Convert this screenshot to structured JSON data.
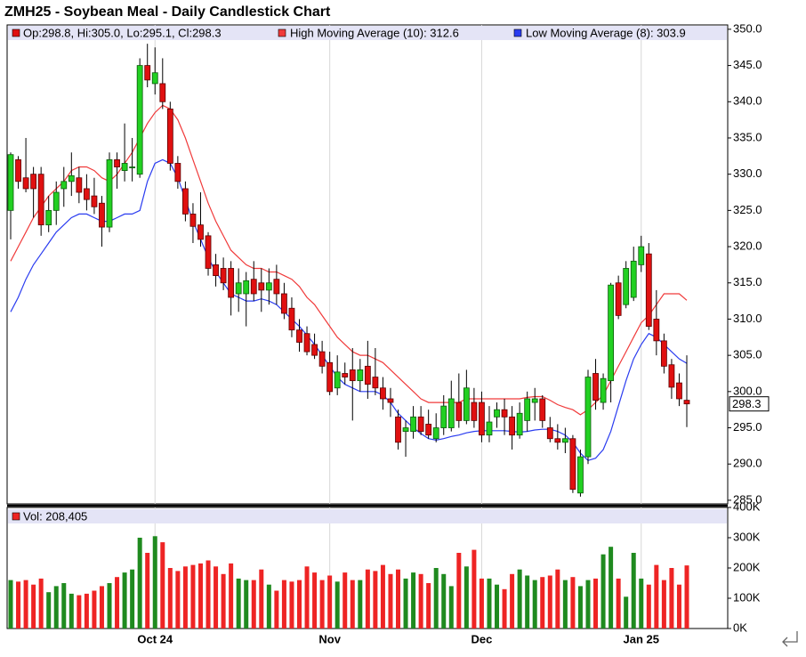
{
  "chart_data": [
    {
      "type": "candlestick",
      "title": "ZMH25 - Soybean Meal - Daily Candlestick Chart",
      "ohlc_label": "Op:298.8, Hi:305.0, Lo:295.1, Cl:298.3",
      "up_color": "#22d022",
      "down_color": "#e01010",
      "categories": [
        null,
        null,
        null,
        null,
        null,
        null,
        null,
        null,
        null,
        null,
        null,
        null,
        null,
        null,
        null,
        null,
        null,
        null,
        null,
        "Oct 24",
        null,
        null,
        null,
        null,
        null,
        null,
        null,
        null,
        null,
        null,
        null,
        null,
        null,
        null,
        null,
        null,
        null,
        null,
        null,
        null,
        null,
        null,
        "Nov",
        null,
        null,
        null,
        null,
        null,
        null,
        null,
        null,
        null,
        null,
        null,
        null,
        null,
        null,
        null,
        null,
        null,
        null,
        null,
        "Dec",
        null,
        null,
        null,
        null,
        null,
        null,
        null,
        null,
        null,
        null,
        null,
        null,
        null,
        null,
        null,
        null,
        null,
        null,
        null,
        null,
        "Jan 25",
        null,
        null,
        null,
        null,
        null,
        null
      ],
      "open": [
        325,
        332,
        329.5,
        330,
        330,
        323,
        325,
        328,
        329,
        329.5,
        328,
        327,
        326,
        322.7,
        332,
        330.5,
        331,
        330,
        345,
        342.5,
        342.5,
        339,
        331.5,
        328,
        324.5,
        323,
        321.5,
        317.5,
        317,
        317,
        313.5,
        313.5,
        315.5,
        315,
        314,
        315.5,
        313.5,
        311.5,
        308.5,
        308,
        306.5,
        305.5,
        304,
        300.5,
        302.5,
        303,
        301.5,
        303.5,
        302,
        300.5,
        299,
        296.5,
        294.5,
        294.5,
        296.5,
        295.5,
        293.5,
        295,
        295,
        298.5,
        296,
        298.5,
        298.5,
        294,
        296.5,
        297.5,
        296.5,
        294,
        296,
        298.5,
        299,
        295,
        293.5,
        293,
        293.5,
        286,
        291,
        302.5,
        298.5,
        301.5,
        315,
        312,
        313,
        317.5,
        319,
        310,
        307,
        303.7,
        301.2,
        298.8
      ],
      "high": [
        333,
        332.5,
        335,
        331,
        331,
        327,
        329,
        331,
        333,
        331,
        330,
        329.5,
        327,
        333,
        333,
        337,
        335,
        346,
        348,
        347.5,
        346,
        340,
        332.5,
        329,
        326,
        327.5,
        322,
        319,
        318.5,
        318,
        317,
        316.5,
        318,
        317,
        317,
        317.5,
        315,
        313,
        310,
        309,
        308,
        307,
        305.5,
        305,
        304,
        306,
        304.5,
        307,
        306,
        302,
        300.5,
        297.5,
        296,
        298,
        298,
        297.5,
        297,
        299.5,
        301.5,
        302.5,
        303,
        300.5,
        300,
        298,
        298.5,
        299,
        298,
        298.5,
        300,
        300.5,
        299.5,
        296.5,
        295.5,
        295,
        294,
        292,
        303,
        304.5,
        302.5,
        315,
        316,
        318,
        320,
        321.5,
        320.5,
        314,
        308,
        304.5,
        302.5,
        305
      ],
      "low": [
        321,
        328,
        327.5,
        324,
        321.5,
        322,
        323,
        325.5,
        327,
        326,
        325,
        324.5,
        320,
        322,
        328,
        329,
        329,
        329.5,
        342,
        341,
        339,
        330.5,
        328,
        323.5,
        320.5,
        320,
        316,
        314.5,
        314,
        310.5,
        311,
        309,
        312.5,
        311,
        312,
        312,
        310,
        307.5,
        305.5,
        305,
        304.5,
        302.5,
        299.5,
        299.5,
        301,
        296,
        300,
        299,
        299.5,
        297.5,
        296.5,
        292,
        291,
        293.5,
        294,
        293.5,
        293,
        294,
        294.5,
        295,
        295.5,
        295,
        293,
        293,
        295,
        294,
        292,
        293.5,
        294.5,
        296,
        295,
        293,
        292,
        291.5,
        286,
        285.5,
        290,
        297.5,
        297.5,
        298.5,
        310,
        311.5,
        312.5,
        316.5,
        308.5,
        305,
        302.5,
        299,
        298,
        295.1
      ],
      "close": [
        332.7,
        329,
        328,
        328,
        323,
        325,
        327.5,
        329,
        329.8,
        327.5,
        326.5,
        325.5,
        322.7,
        332,
        331,
        331.5,
        331,
        345,
        343,
        344,
        340,
        331.5,
        329,
        324.5,
        322.8,
        321,
        317,
        316,
        315,
        313,
        315,
        315.3,
        313.5,
        314,
        315,
        313.5,
        310.8,
        308.5,
        306.8,
        305.5,
        305,
        303.5,
        300,
        302.7,
        302,
        301.5,
        303,
        301,
        300.5,
        299,
        298.5,
        293,
        295,
        296.5,
        294.5,
        294,
        295,
        298,
        299,
        296,
        300.5,
        296,
        294,
        295.8,
        297.5,
        296.5,
        294,
        297,
        299,
        299,
        296,
        293.5,
        293,
        293.5,
        286.5,
        291,
        302,
        298.8,
        301.8,
        314.7,
        310.5,
        317,
        318,
        320,
        309,
        307,
        303.5,
        300.6,
        299,
        298.3
      ],
      "series": [
        {
          "name": "High Moving Average (10): 312.6",
          "color": "#f03a3a",
          "values": [
            318,
            320,
            322,
            324,
            325.5,
            327,
            328,
            329,
            330.5,
            331,
            331,
            330.5,
            329.5,
            329,
            330,
            331.5,
            333,
            335,
            337,
            338.5,
            339.5,
            339,
            337.5,
            335,
            332,
            329,
            326,
            323.5,
            321.5,
            319.5,
            318.5,
            317.5,
            317,
            317,
            316.5,
            316.5,
            316,
            315.5,
            314.5,
            313,
            312,
            310.5,
            309,
            307.5,
            306.5,
            305.5,
            305,
            305,
            304.5,
            304,
            303,
            302,
            301,
            300,
            299,
            298.5,
            298.5,
            298.5,
            298.5,
            298.5,
            299,
            299,
            299,
            299,
            299,
            299,
            299,
            299,
            299.2,
            299.3,
            299.3,
            298.8,
            298.2,
            297.8,
            297.5,
            296.8,
            297.5,
            298.5,
            299.5,
            301.5,
            303.5,
            305.5,
            307.5,
            309.5,
            310.5,
            312,
            313.5,
            313.5,
            313.5,
            312.6
          ]
        },
        {
          "name": "Low Moving Average (8): 303.9",
          "color": "#2a3cf0",
          "values": [
            311,
            313,
            315.5,
            317.5,
            319,
            320.5,
            322,
            323,
            324,
            324.5,
            324.5,
            324,
            323.5,
            323.5,
            324,
            324.5,
            324.5,
            325,
            329,
            331.5,
            332,
            331.5,
            329.5,
            326.5,
            323.5,
            321,
            318.5,
            316.5,
            315,
            313.5,
            313,
            312.5,
            312.5,
            312.8,
            312.5,
            312,
            311,
            310,
            309,
            307.8,
            306.5,
            305,
            303.5,
            302,
            301,
            300.5,
            300,
            300,
            300,
            299.5,
            298.5,
            297,
            296,
            295,
            294.2,
            293.5,
            293.3,
            293.5,
            293.8,
            294,
            294.3,
            294.5,
            294.6,
            294.6,
            294.6,
            294.6,
            294.5,
            294.4,
            294.5,
            294.7,
            294.8,
            294.8,
            294.5,
            294,
            293,
            291.5,
            290.5,
            290.8,
            292,
            294.5,
            298,
            301.5,
            304.5,
            306.5,
            308,
            307.5,
            306.5,
            305.5,
            304.5,
            303.9
          ]
        }
      ],
      "ylim": [
        284.5,
        350.6
      ],
      "yticks": [
        {
          "value": 285,
          "label": "285.0"
        },
        {
          "value": 290,
          "label": "290.0"
        },
        {
          "value": 295,
          "label": "295.0"
        },
        {
          "value": 300,
          "label": "300.0"
        },
        {
          "value": 305,
          "label": "305.0"
        },
        {
          "value": 310,
          "label": "310.0"
        },
        {
          "value": 315,
          "label": "315.0"
        },
        {
          "value": 320,
          "label": "320.0"
        },
        {
          "value": 325,
          "label": "325.0"
        },
        {
          "value": 330,
          "label": "330.0"
        },
        {
          "value": 335,
          "label": "335.0"
        },
        {
          "value": 340,
          "label": "340.0"
        },
        {
          "value": 345,
          "label": "345.0"
        },
        {
          "value": 350,
          "label": "350.0"
        }
      ],
      "grid": "x"
    },
    {
      "type": "bar",
      "series": [
        {
          "name": "Vol: 208,405",
          "up_color": "#1f8a1f",
          "down_color": "#ee2424",
          "values": [
            160000,
            155000,
            160000,
            145000,
            165000,
            120000,
            140000,
            150000,
            115000,
            110000,
            115000,
            125000,
            140000,
            150000,
            170000,
            185000,
            195000,
            300000,
            250000,
            305000,
            285000,
            200000,
            190000,
            205000,
            210000,
            215000,
            225000,
            205000,
            180000,
            215000,
            165000,
            160000,
            160000,
            195000,
            145000,
            125000,
            160000,
            155000,
            160000,
            205000,
            185000,
            160000,
            175000,
            155000,
            185000,
            160000,
            160000,
            195000,
            190000,
            210000,
            180000,
            195000,
            165000,
            185000,
            180000,
            150000,
            200000,
            180000,
            140000,
            250000,
            205000,
            260000,
            165000,
            165000,
            145000,
            130000,
            180000,
            195000,
            175000,
            160000,
            170000,
            175000,
            195000,
            160000,
            170000,
            140000,
            160000,
            165000,
            245000,
            270000,
            165000,
            105000,
            250000,
            165000,
            145000,
            210000,
            160000,
            200000,
            145000,
            208405
          ]
        }
      ],
      "ylim": [
        0,
        400000
      ],
      "yticks": [
        {
          "value": 0,
          "label": "0K"
        },
        {
          "value": 100000,
          "label": "100K"
        },
        {
          "value": 200000,
          "label": "200K"
        },
        {
          "value": 300000,
          "label": "300K"
        },
        {
          "value": 400000,
          "label": "400K"
        }
      ]
    }
  ]
}
